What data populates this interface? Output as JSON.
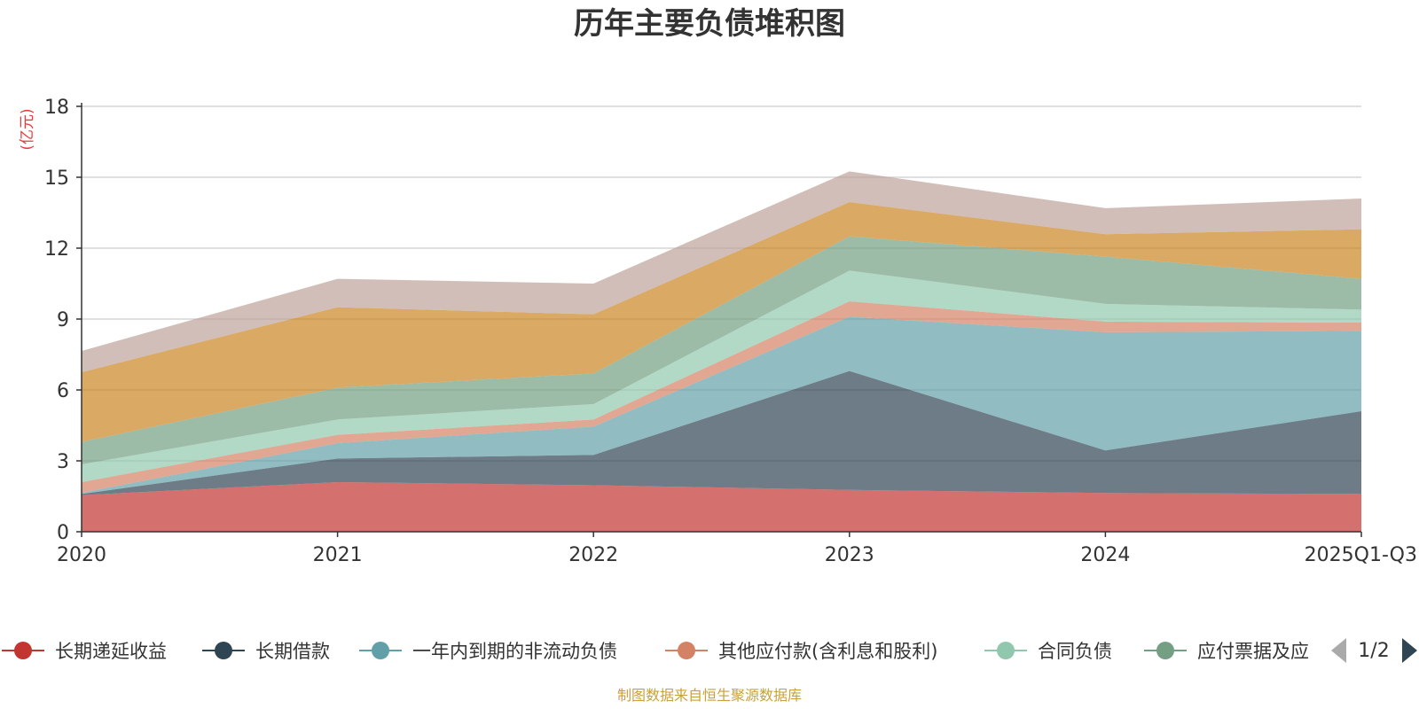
{
  "chart_data": {
    "type": "area",
    "title": "历年主要负债堆积图",
    "ylabel": "(亿元)",
    "xlabel": "",
    "ylim": [
      0,
      18
    ],
    "yticks": [
      0,
      3,
      6,
      9,
      12,
      15,
      18
    ],
    "categories": [
      "2020",
      "2021",
      "2022",
      "2023",
      "2024",
      "2025Q1-Q3"
    ],
    "stacked": true,
    "grid": true,
    "series": [
      {
        "name": "长期递延收益",
        "color": "#c23531",
        "values": [
          1.55,
          2.1,
          1.97,
          1.77,
          1.64,
          1.6
        ]
      },
      {
        "name": "长期借款",
        "color": "#2f4554",
        "values": [
          0.05,
          1.0,
          1.28,
          5.03,
          1.8,
          3.5
        ]
      },
      {
        "name": "一年内到期的非流动负债",
        "color": "#61a0a8",
        "values": [
          0.05,
          0.65,
          1.2,
          2.3,
          5.0,
          3.4
        ]
      },
      {
        "name": "其他应付款(含利息和股利)",
        "color": "#d48265",
        "values": [
          0.45,
          0.35,
          0.3,
          0.65,
          0.45,
          0.35
        ]
      },
      {
        "name": "合同负债",
        "color": "#91c7ae",
        "values": [
          0.75,
          0.65,
          0.65,
          1.3,
          0.75,
          0.55
        ]
      },
      {
        "name": "应付票据及应付账款",
        "color": "#749f83",
        "values": [
          0.95,
          1.35,
          1.3,
          1.45,
          2.0,
          1.3
        ]
      },
      {
        "name": "",
        "color": "#ca8622",
        "values": [
          2.95,
          3.4,
          2.5,
          1.45,
          0.95,
          2.1
        ]
      },
      {
        "name": "",
        "color": "#bda29a",
        "values": [
          0.9,
          1.2,
          1.3,
          1.3,
          1.1,
          1.3
        ]
      }
    ],
    "legend": {
      "placement": "bottom",
      "page": "1/2",
      "visible_labels": [
        "长期递延收益",
        "长期借款",
        "一年内到期的非流动负债",
        "其他应付款(含利息和股利)",
        "合同负债",
        "应付票据及应"
      ]
    },
    "source_note": "制图数据来自恒生聚源数据库"
  }
}
